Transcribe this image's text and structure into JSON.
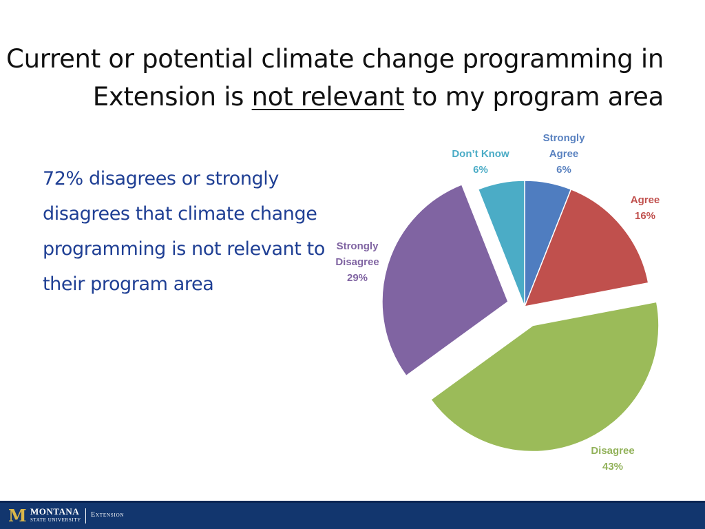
{
  "slide": {
    "title_line1": "Current or potential climate change programming in",
    "title_line2_pre": "Extension is ",
    "title_line2_emph": "not relevant",
    "title_line2_post": " to my program area",
    "summary": "72% disagrees or strongly disagrees that climate change programming is not relevant to their program area"
  },
  "footer": {
    "logo_letter": "M",
    "university_line1": "MONTANA",
    "university_line2": "STATE UNIVERSITY",
    "unit": "Extension"
  },
  "colors": {
    "title_text": "#111111",
    "summary_text": "#1f3f94",
    "footer_bg": "#12366e",
    "logo_gold": "#d9b64a"
  },
  "chart_data": {
    "type": "pie",
    "title": "",
    "exploded_slices": [
      "Disagree",
      "Strongly Disagree"
    ],
    "slices": [
      {
        "label": "Strongly Agree",
        "value": 6,
        "display": "6%",
        "color": "#4f7dc0",
        "label_color": "#5a82c0"
      },
      {
        "label": "Agree",
        "value": 16,
        "display": "16%",
        "color": "#c0504d",
        "label_color": "#c0504d"
      },
      {
        "label": "Disagree",
        "value": 43,
        "display": "43%",
        "color": "#9bbb59",
        "label_color": "#92b25a"
      },
      {
        "label": "Strongly Disagree",
        "value": 29,
        "display": "29%",
        "color": "#8064a2",
        "label_color": "#8064a2"
      },
      {
        "label": "Don’t Know",
        "value": 6,
        "display": "6%",
        "color": "#4bacc6",
        "label_color": "#4bacc6"
      }
    ]
  }
}
